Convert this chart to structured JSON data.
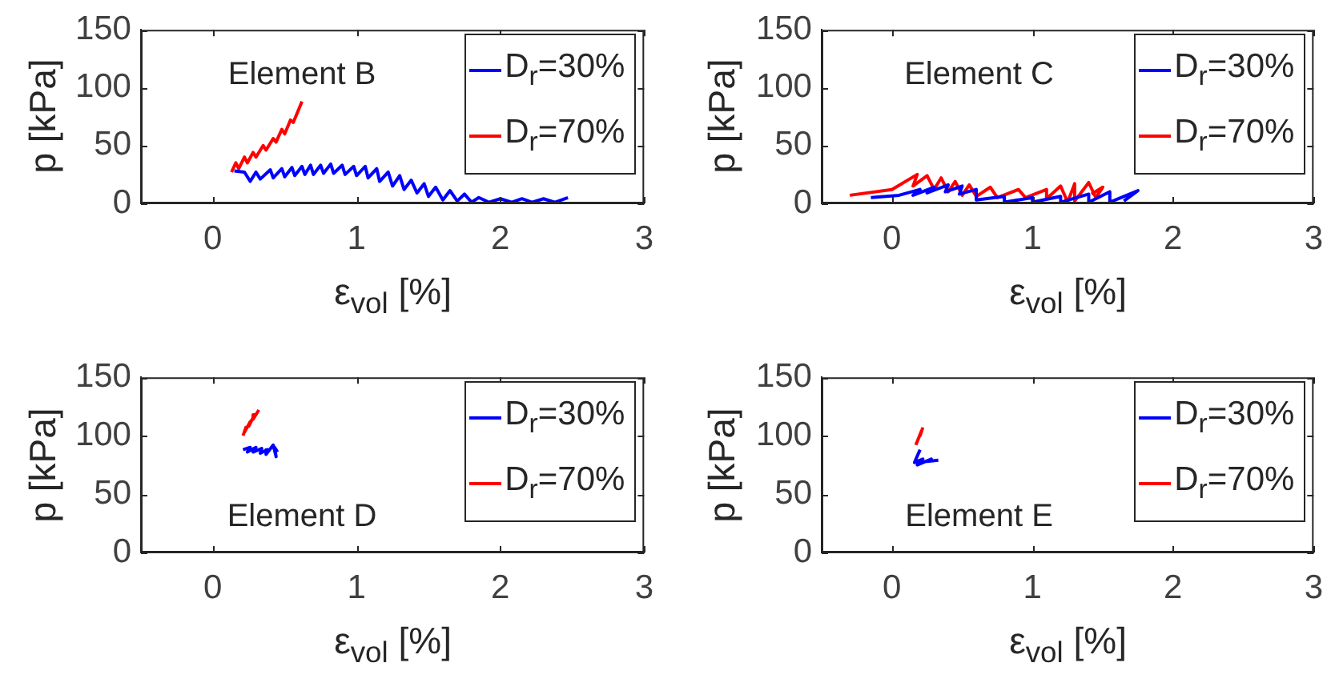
{
  "chart_data": [
    {
      "type": "line",
      "xlabel": "ε$_{vol}$ [%]",
      "ylabel": "p [kPa]",
      "annotations": [
        "Element B"
      ],
      "xlim": [
        -0.5,
        3
      ],
      "xticks": [
        0,
        1,
        2,
        3
      ],
      "ylim": [
        0,
        150
      ],
      "yticks": [
        0,
        50,
        100,
        150
      ],
      "legend": "top right",
      "series": [
        {
          "name": "D$_{r}$=30%",
          "color": "#0000ff",
          "x": [
            0.15,
            0.22,
            0.26,
            0.3,
            0.33,
            0.4,
            0.42,
            0.48,
            0.5,
            0.55,
            0.57,
            0.62,
            0.64,
            0.68,
            0.7,
            0.75,
            0.77,
            0.82,
            0.84,
            0.9,
            0.92,
            0.98,
            1.0,
            1.06,
            1.08,
            1.14,
            1.16,
            1.22,
            1.25,
            1.3,
            1.33,
            1.38,
            1.42,
            1.47,
            1.5,
            1.55,
            1.6,
            1.65,
            1.7,
            1.75,
            1.8,
            1.85,
            1.92,
            2.0,
            2.08,
            2.15,
            2.22,
            2.3,
            2.38,
            2.47
          ],
          "values": [
            28,
            27,
            19,
            27,
            21,
            29,
            22,
            30,
            23,
            31,
            24,
            32,
            25,
            33,
            25,
            33,
            26,
            34,
            26,
            33,
            25,
            32,
            24,
            32,
            22,
            30,
            19,
            27,
            15,
            24,
            12,
            20,
            9,
            17,
            6,
            14,
            3,
            11,
            2,
            8,
            1,
            5,
            1,
            4,
            1,
            4,
            1,
            4,
            1,
            5
          ]
        },
        {
          "name": "D$_{r}$=70%",
          "color": "#ff0000",
          "x": [
            0.13,
            0.16,
            0.18,
            0.22,
            0.24,
            0.28,
            0.3,
            0.35,
            0.37,
            0.42,
            0.44,
            0.48,
            0.5,
            0.54,
            0.56,
            0.6,
            0.62
          ],
          "values": [
            27,
            35,
            30,
            40,
            35,
            44,
            40,
            50,
            46,
            56,
            53,
            64,
            60,
            72,
            70,
            82,
            88
          ]
        }
      ]
    },
    {
      "type": "line",
      "xlabel": "ε$_{vol}$ [%]",
      "ylabel": "p [kPa]",
      "annotations": [
        "Element C"
      ],
      "xlim": [
        -0.5,
        3
      ],
      "xticks": [
        0,
        1,
        2,
        3
      ],
      "ylim": [
        0,
        150
      ],
      "yticks": [
        0,
        50,
        100,
        150
      ],
      "legend": "top right",
      "series": [
        {
          "name": "D$_{r}$=30%",
          "color": "#0000ff",
          "x": [
            -0.15,
            0.05,
            0.2,
            0.15,
            0.3,
            0.25,
            0.4,
            0.38,
            0.5,
            0.48,
            0.6,
            0.6,
            0.8,
            0.8,
            1.0,
            1.0,
            1.2,
            1.2,
            1.4,
            1.4,
            1.55,
            1.55,
            1.75,
            1.65
          ],
          "values": [
            5,
            7,
            12,
            7,
            14,
            9,
            16,
            10,
            15,
            8,
            12,
            3,
            6,
            1,
            5,
            1,
            6,
            1,
            8,
            1,
            10,
            1,
            11,
            2
          ]
        },
        {
          "name": "D$_{r}$=70%",
          "color": "#ff0000",
          "x": [
            -0.3,
            0.0,
            0.18,
            0.15,
            0.25,
            0.3,
            0.35,
            0.4,
            0.45,
            0.5,
            0.55,
            0.6,
            0.7,
            0.75,
            0.9,
            0.95,
            1.1,
            1.1,
            1.2,
            1.25,
            1.3,
            1.3,
            1.4,
            1.45,
            1.5,
            1.42
          ],
          "values": [
            7,
            12,
            25,
            15,
            24,
            12,
            22,
            10,
            19,
            7,
            16,
            6,
            14,
            5,
            12,
            5,
            12,
            4,
            15,
            1,
            17,
            2,
            18,
            5,
            14,
            8
          ]
        }
      ]
    },
    {
      "type": "line",
      "xlabel": "ε$_{vol}$ [%]",
      "ylabel": "p [kPa]",
      "annotations": [
        "Element D"
      ],
      "xlim": [
        -0.5,
        3
      ],
      "xticks": [
        0,
        1,
        2,
        3
      ],
      "ylim": [
        0,
        150
      ],
      "yticks": [
        0,
        50,
        100,
        150
      ],
      "legend": "top right",
      "series": [
        {
          "name": "D$_{r}$=30%",
          "color": "#0000ff",
          "x": [
            0.21,
            0.26,
            0.24,
            0.3,
            0.28,
            0.34,
            0.33,
            0.38,
            0.37,
            0.42,
            0.44,
            0.43,
            0.45
          ],
          "values": [
            88,
            90,
            86,
            90,
            86,
            89,
            85,
            88,
            84,
            92,
            82,
            90,
            86
          ]
        },
        {
          "name": "D$_{r}$=70%",
          "color": "#ff0000",
          "x": [
            0.21,
            0.23,
            0.22,
            0.26,
            0.25,
            0.29,
            0.28,
            0.32
          ],
          "values": [
            100,
            107,
            103,
            112,
            108,
            118,
            114,
            122
          ]
        }
      ]
    },
    {
      "type": "line",
      "xlabel": "ε$_{vol}$ [%]",
      "ylabel": "p [kPa]",
      "annotations": [
        "Element E"
      ],
      "xlim": [
        -0.5,
        3
      ],
      "xticks": [
        0,
        1,
        2,
        3
      ],
      "ylim": [
        0,
        150
      ],
      "yticks": [
        0,
        50,
        100,
        150
      ],
      "legend": "top right",
      "series": [
        {
          "name": "D$_{r}$=30%",
          "color": "#0000ff",
          "x": [
            0.2,
            0.16,
            0.22,
            0.18,
            0.28,
            0.25,
            0.33
          ],
          "values": [
            88,
            77,
            80,
            75,
            80,
            78,
            79
          ]
        },
        {
          "name": "D$_{r}$=70%",
          "color": "#ff0000",
          "x": [
            0.17,
            0.19,
            0.18,
            0.21,
            0.2,
            0.22
          ],
          "values": [
            92,
            98,
            95,
            104,
            100,
            107
          ]
        }
      ]
    }
  ]
}
